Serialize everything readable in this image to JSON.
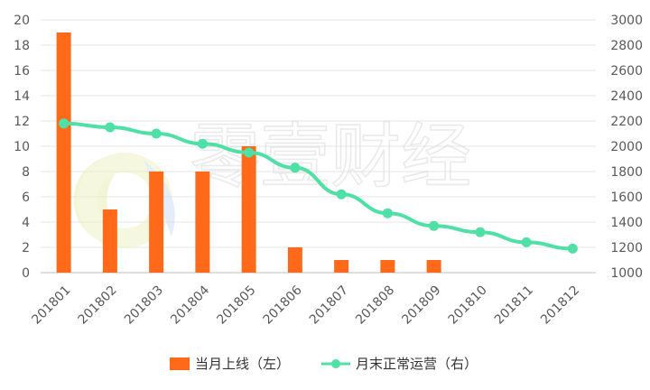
{
  "chart_data": {
    "type": "bar",
    "categories": [
      "201801",
      "201802",
      "201803",
      "201804",
      "201805",
      "201806",
      "201807",
      "201808",
      "201809",
      "201810",
      "201811",
      "201812"
    ],
    "series": [
      {
        "name": "当月上线（左）",
        "type": "bar",
        "axis": "left",
        "color": "#ff6a1a",
        "values": [
          19,
          5,
          8,
          8,
          10,
          2,
          1,
          1,
          1,
          0,
          0,
          0
        ]
      },
      {
        "name": "月末正常运营（右）",
        "type": "line",
        "axis": "right",
        "color": "#4fe0a5",
        "values": [
          2180,
          2150,
          2100,
          2020,
          1950,
          1830,
          1620,
          1470,
          1370,
          1320,
          1240,
          1190
        ]
      }
    ],
    "y_left": {
      "min": 0,
      "max": 20,
      "ticks": [
        0,
        2,
        4,
        6,
        8,
        10,
        12,
        14,
        16,
        18,
        20
      ]
    },
    "y_right": {
      "min": 1000,
      "max": 3000,
      "ticks": [
        1000,
        1200,
        1400,
        1600,
        1800,
        2000,
        2200,
        2400,
        2600,
        2800,
        3000
      ]
    },
    "grid": true,
    "legend_position": "bottom"
  },
  "watermark": {
    "text": "零壹财经"
  }
}
